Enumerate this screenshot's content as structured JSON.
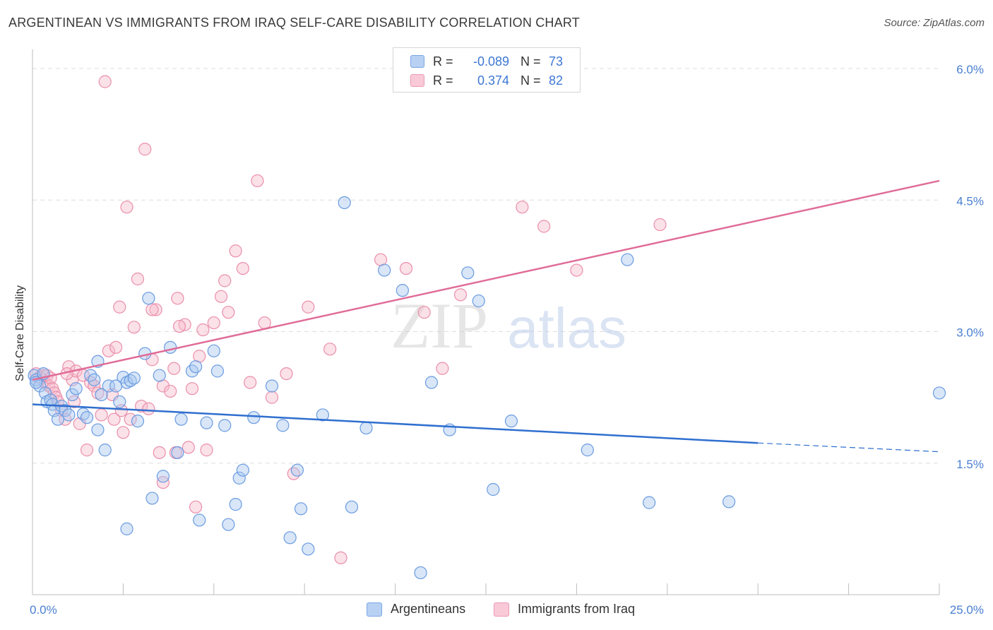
{
  "header": {
    "title": "ARGENTINEAN VS IMMIGRANTS FROM IRAQ SELF-CARE DISABILITY CORRELATION CHART",
    "source": "Source: ZipAtlas.com"
  },
  "watermark": {
    "zip": "ZIP",
    "atlas": "atlas"
  },
  "colors": {
    "blue_fill": "#a9c8f0",
    "blue_stroke": "#6a9be0",
    "blue_line": "#2f6fcf",
    "pink_fill": "#f7bccd",
    "pink_stroke": "#ea8fab",
    "pink_line": "#e06c97",
    "grid": "#dddddd",
    "axis_label": "#4a7fd0"
  },
  "legend": {
    "rows": [
      {
        "r_label": "R =",
        "r_value": "-0.089",
        "n_label": "N =",
        "n_value": "73"
      },
      {
        "r_label": "R =",
        "r_value": "0.374",
        "n_label": "N =",
        "n_value": "82"
      }
    ]
  },
  "bottom_legend": {
    "series1": "Argentineans",
    "series2": "Immigrants from Iraq"
  },
  "chart_data": {
    "type": "scatter",
    "title": "ARGENTINEAN VS IMMIGRANTS FROM IRAQ SELF-CARE DISABILITY CORRELATION CHART",
    "ylabel": "Self-Care Disability",
    "xlim": [
      0,
      25
    ],
    "ylim": [
      0,
      6.2
    ],
    "x_tick_labels": [
      "0.0%",
      "25.0%"
    ],
    "y_ticks": [
      1.5,
      3.0,
      4.5,
      6.0
    ],
    "y_tick_labels": [
      "1.5%",
      "3.0%",
      "4.5%",
      "6.0%"
    ],
    "grid": true,
    "series": [
      {
        "name": "Argentineans",
        "trend": {
          "x0": 0,
          "y0": 2.17,
          "x1": 20,
          "y1": 1.73,
          "dash_to_x": 25,
          "dash_to_y": 1.63
        },
        "points": [
          [
            0.05,
            2.5
          ],
          [
            0.1,
            2.45
          ],
          [
            0.2,
            2.38
          ],
          [
            0.3,
            2.52
          ],
          [
            0.35,
            2.3
          ],
          [
            0.4,
            2.2
          ],
          [
            0.5,
            2.22
          ],
          [
            0.55,
            2.17
          ],
          [
            0.6,
            2.1
          ],
          [
            0.7,
            2.0
          ],
          [
            0.8,
            2.15
          ],
          [
            0.9,
            2.1
          ],
          [
            1.0,
            2.05
          ],
          [
            1.1,
            2.28
          ],
          [
            1.2,
            2.35
          ],
          [
            1.4,
            2.06
          ],
          [
            1.5,
            2.02
          ],
          [
            1.6,
            2.5
          ],
          [
            1.7,
            2.45
          ],
          [
            1.8,
            1.88
          ],
          [
            1.9,
            2.28
          ],
          [
            2.0,
            1.65
          ],
          [
            2.1,
            2.38
          ],
          [
            2.3,
            2.38
          ],
          [
            2.4,
            2.2
          ],
          [
            2.5,
            2.48
          ],
          [
            2.6,
            2.42
          ],
          [
            2.7,
            2.44
          ],
          [
            2.8,
            2.47
          ],
          [
            2.9,
            1.98
          ],
          [
            3.1,
            2.75
          ],
          [
            3.2,
            3.38
          ],
          [
            3.3,
            1.1
          ],
          [
            3.5,
            2.5
          ],
          [
            3.6,
            1.35
          ],
          [
            3.8,
            2.82
          ],
          [
            4.0,
            1.62
          ],
          [
            4.1,
            2.0
          ],
          [
            4.4,
            2.55
          ],
          [
            4.5,
            2.6
          ],
          [
            4.6,
            0.85
          ],
          [
            4.8,
            1.96
          ],
          [
            5.0,
            2.78
          ],
          [
            5.1,
            2.55
          ],
          [
            5.3,
            1.93
          ],
          [
            5.4,
            0.8
          ],
          [
            5.6,
            1.03
          ],
          [
            5.7,
            1.33
          ],
          [
            5.8,
            1.42
          ],
          [
            6.1,
            2.02
          ],
          [
            6.6,
            2.38
          ],
          [
            6.9,
            1.93
          ],
          [
            7.1,
            0.65
          ],
          [
            7.3,
            1.42
          ],
          [
            7.4,
            0.98
          ],
          [
            7.6,
            0.52
          ],
          [
            8.0,
            2.05
          ],
          [
            8.6,
            4.47
          ],
          [
            8.8,
            1.0
          ],
          [
            9.2,
            1.9
          ],
          [
            9.7,
            3.7
          ],
          [
            10.2,
            3.47
          ],
          [
            10.7,
            0.25
          ],
          [
            11.0,
            2.42
          ],
          [
            11.5,
            1.88
          ],
          [
            12.0,
            3.67
          ],
          [
            12.3,
            3.35
          ],
          [
            12.7,
            1.2
          ],
          [
            13.2,
            1.98
          ],
          [
            15.3,
            1.65
          ],
          [
            16.4,
            3.82
          ],
          [
            19.2,
            1.06
          ],
          [
            25.0,
            2.3
          ]
        ],
        "extra_points": [
          [
            0.1,
            2.42
          ],
          [
            1.8,
            2.66
          ],
          [
            2.6,
            0.75
          ],
          [
            17.0,
            1.05
          ]
        ]
      },
      {
        "name": "Immigrants from Iraq",
        "trend": {
          "x0": 0,
          "y0": 2.45,
          "x1": 25,
          "y1": 4.72
        },
        "points": [
          [
            0.1,
            2.52
          ],
          [
            0.2,
            2.48
          ],
          [
            0.3,
            2.5
          ],
          [
            0.35,
            2.42
          ],
          [
            0.4,
            2.5
          ],
          [
            0.45,
            2.38
          ],
          [
            0.5,
            2.47
          ],
          [
            0.55,
            2.35
          ],
          [
            0.6,
            2.3
          ],
          [
            0.65,
            2.25
          ],
          [
            0.7,
            2.2
          ],
          [
            0.8,
            2.1
          ],
          [
            0.9,
            2.0
          ],
          [
            1.0,
            2.6
          ],
          [
            1.1,
            2.45
          ],
          [
            1.2,
            2.55
          ],
          [
            1.3,
            1.95
          ],
          [
            1.4,
            2.5
          ],
          [
            1.5,
            1.65
          ],
          [
            1.6,
            2.42
          ],
          [
            1.7,
            2.38
          ],
          [
            1.8,
            2.3
          ],
          [
            1.9,
            2.05
          ],
          [
            2.0,
            5.85
          ],
          [
            2.1,
            2.78
          ],
          [
            2.2,
            2.28
          ],
          [
            2.3,
            2.82
          ],
          [
            2.4,
            3.28
          ],
          [
            2.5,
            1.85
          ],
          [
            2.6,
            4.42
          ],
          [
            2.7,
            2.0
          ],
          [
            2.8,
            3.05
          ],
          [
            2.9,
            3.6
          ],
          [
            3.0,
            2.15
          ],
          [
            3.1,
            5.08
          ],
          [
            3.2,
            2.12
          ],
          [
            3.3,
            2.68
          ],
          [
            3.4,
            3.25
          ],
          [
            3.5,
            1.62
          ],
          [
            3.6,
            2.38
          ],
          [
            3.8,
            2.32
          ],
          [
            3.9,
            2.58
          ],
          [
            4.0,
            3.38
          ],
          [
            4.2,
            3.08
          ],
          [
            4.3,
            1.68
          ],
          [
            4.4,
            2.35
          ],
          [
            4.5,
            1.0
          ],
          [
            4.6,
            2.72
          ],
          [
            4.7,
            3.02
          ],
          [
            4.8,
            1.65
          ],
          [
            5.0,
            3.1
          ],
          [
            5.2,
            3.4
          ],
          [
            5.4,
            3.22
          ],
          [
            5.6,
            3.92
          ],
          [
            5.8,
            3.72
          ],
          [
            6.0,
            2.42
          ],
          [
            6.2,
            4.72
          ],
          [
            6.4,
            3.1
          ],
          [
            6.6,
            2.25
          ],
          [
            7.0,
            2.52
          ],
          [
            7.2,
            1.38
          ],
          [
            7.6,
            3.28
          ],
          [
            8.2,
            2.8
          ],
          [
            8.5,
            0.42
          ],
          [
            9.6,
            3.82
          ],
          [
            10.3,
            3.72
          ],
          [
            10.8,
            3.22
          ],
          [
            11.3,
            2.58
          ],
          [
            11.8,
            3.42
          ],
          [
            13.5,
            4.42
          ],
          [
            14.1,
            4.2
          ],
          [
            15.0,
            3.7
          ],
          [
            17.3,
            4.22
          ],
          [
            3.3,
            3.25
          ],
          [
            3.6,
            1.28
          ],
          [
            2.25,
            2.0
          ],
          [
            1.15,
            2.2
          ],
          [
            4.05,
            3.06
          ],
          [
            0.95,
            2.52
          ],
          [
            5.3,
            3.58
          ],
          [
            2.45,
            2.1
          ],
          [
            3.95,
            1.62
          ]
        ]
      }
    ]
  }
}
